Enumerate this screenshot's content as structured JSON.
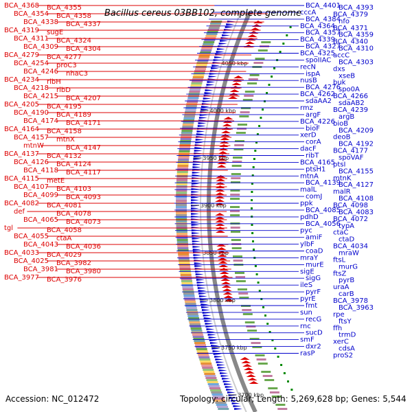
{
  "title": "Bacillus cereus 03BB102, complete genome",
  "accession": "Accession: NC_012472",
  "summary": "Topology: circular; Length: 5,269,628 bp; Genes: 5,544",
  "colors": {
    "forward": "#dd0000",
    "reverse": "#0000cc",
    "backbone": "#888888",
    "tick": "#008800"
  },
  "ticks": [
    "4050 kbp",
    "4000 kbp",
    "3950 kbp",
    "3900 kbp",
    "3850 kbp",
    "3800 kbp",
    "3750 kbp",
    "3700 kbp"
  ],
  "left_labels": [
    "BCA_4368",
    "BCA_4355",
    "BCA_4354",
    "BCA_4358",
    "BCA_4338",
    "BCA_4337",
    "BCA_4319",
    "sugE",
    "BCA_4311",
    "BCA_4324",
    "BCA_4309",
    "BCA_4304",
    "BCA_4279",
    "BCA_4277",
    "BCA_4254",
    "proC3",
    "BCA_4246",
    "nhaC3",
    "BCA_4234",
    "ribH",
    "BCA_4218",
    "ribD",
    "BCA_4215",
    "BCA_4207",
    "BCA_4205",
    "BCA_4195",
    "BCA_4190",
    "BCA_4189",
    "BCA_4174",
    "BCA_4171",
    "BCA_4164",
    "BCA_4158",
    "BCA_4157",
    "mtnX",
    "mtnW",
    "BCA_4147",
    "BCA_4137",
    "BCA_4132",
    "BCA_4126",
    "BCA_4124",
    "BCA_4118",
    "BCA_4117",
    "BCA_4115",
    "metE",
    "BCA_4107",
    "BCA_4103",
    "BCA_4099",
    "BCA_4093",
    "BCA_4082",
    "BCA_4081",
    "def",
    "BCA_4078",
    "BCA_4065",
    "BCA_4073",
    "tgl",
    "BCA_4058",
    "BCA_4055",
    "ctaA",
    "BCA_4043",
    "BCA_4036",
    "BCA_4033",
    "BCA_4029",
    "BCA_4025",
    "BCA_3982",
    "BCA_3981",
    "BCA_3980",
    "BCA_3977",
    "BCA_3976"
  ],
  "right_labels": [
    "BCA_4401",
    "BCA_4393",
    "cccA",
    "BCA_4379",
    "BCA_4384",
    "nfo",
    "BCA_4364",
    "BCA_4371",
    "BCA_4357",
    "BCA_4359",
    "BCA_4339",
    "BCA_4340",
    "BCA_4327",
    "BCA_4310",
    "BCA_4325",
    "accC",
    "spoIIAC",
    "BCA_4303",
    "recN",
    "dxs",
    "ispA",
    "xseB",
    "nusB",
    "buk",
    "BCA_4276",
    "spo0A",
    "BCA_4262",
    "BCA_4266",
    "sdaAA2",
    "sdaAB2",
    "rmz",
    "BCA_4239",
    "argF",
    "argB",
    "BCA_4226",
    "bioB",
    "bioF",
    "BCA_4209",
    "xerD",
    "deoB",
    "corA",
    "BCA_4192",
    "dacF",
    "BCA_4177",
    "ribT",
    "spoVAF",
    "BCA_4165",
    "ptsI",
    "ptsH1",
    "BCA_4155",
    "mtnA",
    "mtnK",
    "BCA_4139",
    "BCA_4127",
    "malL",
    "malR",
    "comJ",
    "BCA_4108",
    "ppk",
    "BCA_4098",
    "BCA_4085",
    "BCA_4083",
    "pdhD",
    "BCA_4072",
    "BCA_4056",
    "typA",
    "pyc",
    "ctaC",
    "amiF",
    "ctaD",
    "ylbF",
    "BCA_4034",
    "coaD",
    "mraW",
    "mraY",
    "ftsL",
    "murE",
    "murG",
    "sigE",
    "ftsZ",
    "sigG",
    "pyrB",
    "ileS",
    "uraA",
    "pyrF",
    "carB",
    "pyrE",
    "BCA_3978",
    "fmt",
    "BCA_3963",
    "sun",
    "rpe",
    "recG",
    "ftsY",
    "rnc",
    "ffh",
    "sucD",
    "trmD",
    "smF",
    "xerC",
    "dxr2",
    "cdsA",
    "rasP",
    "proS2"
  ]
}
